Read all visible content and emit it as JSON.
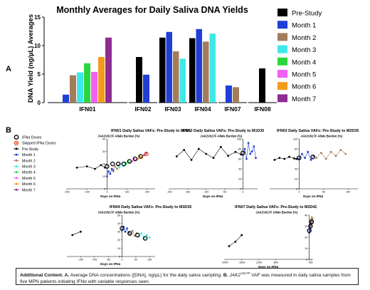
{
  "panel_a": {
    "letter": "A",
    "chart_data": {
      "type": "bar",
      "title": "Monthly Averages for Daily Saliva DNA Yields",
      "ylabel": "DNA Yield (ng/µL) Averages",
      "ylim": [
        0,
        15
      ],
      "yticks": [
        "0",
        "5",
        "10",
        "15"
      ],
      "categories": [
        "IFN01",
        "IFN02",
        "IFN03",
        "IFN04",
        "IFN07",
        "IFN08"
      ],
      "series": [
        {
          "name": "Pre-Study",
          "color": "#000000",
          "values": [
            null,
            8.0,
            11.4,
            11.3,
            null,
            6.0
          ]
        },
        {
          "name": "Month 1",
          "color": "#1f3fd6",
          "values": [
            1.4,
            4.9,
            12.4,
            12.9,
            3.0,
            null
          ]
        },
        {
          "name": "Month 2",
          "color": "#a37d5b",
          "values": [
            4.8,
            null,
            9.0,
            10.7,
            2.7,
            null
          ]
        },
        {
          "name": "Month 3",
          "color": "#3fe8e8",
          "values": [
            5.3,
            null,
            7.7,
            12.1,
            null,
            null
          ]
        },
        {
          "name": "Month 4",
          "color": "#2bd63c",
          "values": [
            6.9,
            null,
            null,
            null,
            null,
            null
          ]
        },
        {
          "name": "Month 5",
          "color": "#f25ff2",
          "values": [
            5.4,
            null,
            null,
            null,
            null,
            null
          ]
        },
        {
          "name": "Month 6",
          "color": "#f59b1b",
          "values": [
            8.0,
            null,
            null,
            null,
            null,
            null
          ]
        },
        {
          "name": "Month 7",
          "color": "#8e2c92",
          "values": [
            11.4,
            null,
            null,
            null,
            null,
            null
          ]
        }
      ]
    }
  },
  "panel_b": {
    "letter": "B",
    "legend": [
      {
        "label": "IFNα Doses",
        "kind": "circle-black",
        "color": "#000000"
      },
      {
        "label": "Skipped IFNα Doses",
        "kind": "circle-x",
        "color": "#e0512a"
      },
      {
        "label": "Pre-Study",
        "kind": "dot",
        "color": "#000000"
      },
      {
        "label": "Month 1",
        "kind": "dot",
        "color": "#1f3fd6"
      },
      {
        "label": "Month 2",
        "kind": "dot",
        "color": "#a37d5b"
      },
      {
        "label": "Month 3",
        "kind": "dot",
        "color": "#3fe8e8"
      },
      {
        "label": "Month 4",
        "kind": "dot",
        "color": "#2bd63c"
      },
      {
        "label": "Month 5",
        "kind": "dot",
        "color": "#f25ff2"
      },
      {
        "label": "Month 6",
        "kind": "dot",
        "color": "#f59b1b"
      },
      {
        "label": "Month 7",
        "kind": "dot",
        "color": "#8e2c92"
      }
    ],
    "chart_data": [
      {
        "type": "line",
        "title": "IFN01 Daily Saliva VAFs: Pre-Study to M7D1",
        "ylabel": "JAK2V617F Allele Burden (%)",
        "xlabel": "Days on IFNα",
        "xlim": [
          -200,
          240
        ],
        "ylim": [
          0,
          40
        ],
        "xticks": [
          "-200",
          "-100",
          "0",
          "100",
          "200"
        ],
        "yticks": [
          "0",
          "10",
          "20",
          "30",
          "40"
        ],
        "series": [
          {
            "name": "Pre-Study",
            "color": "#000000",
            "x": [
              -150,
              -100,
              -60,
              -30,
              -10
            ],
            "y": [
              17,
              18,
              16,
              19,
              17
            ]
          },
          {
            "name": "Month 1",
            "color": "#1f3fd6",
            "x": [
              0,
              8,
              16,
              24,
              30
            ],
            "y": [
              10,
              14,
              12,
              16,
              15
            ]
          },
          {
            "name": "Month 2",
            "color": "#a37d5b",
            "x": [
              32,
              40,
              50,
              58
            ],
            "y": [
              14,
              18,
              16,
              19
            ]
          },
          {
            "name": "Month 3",
            "color": "#3fe8e8",
            "x": [
              62,
              72,
              82,
              90
            ],
            "y": [
              17,
              20,
              18,
              21
            ]
          },
          {
            "name": "Month 4",
            "color": "#2bd63c",
            "x": [
              95,
              105,
              115
            ],
            "y": [
              20,
              22,
              21
            ]
          },
          {
            "name": "Month 5",
            "color": "#f25ff2",
            "x": [
              125,
              135,
              145
            ],
            "y": [
              22,
              24,
              23
            ]
          },
          {
            "name": "Month 6",
            "color": "#f59b1b",
            "x": [
              155,
              165,
              175
            ],
            "y": [
              24,
              26,
              25
            ]
          },
          {
            "name": "Month 7",
            "color": "#8e2c92",
            "x": [
              185,
              195
            ],
            "y": [
              27,
              29
            ]
          }
        ],
        "doses": [
          {
            "x": 0,
            "y": 18
          },
          {
            "x": 28,
            "y": 20
          },
          {
            "x": 56,
            "y": 20
          },
          {
            "x": 84,
            "y": 20
          },
          {
            "x": 112,
            "y": 22
          },
          {
            "x": 140,
            "y": 24
          },
          {
            "x": 168,
            "y": 26
          }
        ],
        "skipped": [
          {
            "x": 196,
            "y": 28
          }
        ]
      },
      {
        "type": "line",
        "title": "IFN02 Daily Saliva VAFs: Pre-Study to M1D35",
        "ylabel": "JAK2V617F Allele Burden (%)",
        "xlabel": "Days on IFNα",
        "xlim": [
          -200,
          40
        ],
        "ylim": [
          0,
          100
        ],
        "xticks": [
          "-200",
          "-150",
          "-100",
          "-50",
          "0"
        ],
        "yticks": [
          "0",
          "20",
          "40",
          "60",
          "80",
          "100"
        ],
        "series": [
          {
            "name": "Pre-Study",
            "color": "#000000",
            "x": [
              -180,
              -160,
              -140,
              -120,
              -100,
              -80,
              -60,
              -40,
              -20,
              -5
            ],
            "y": [
              65,
              78,
              58,
              80,
              70,
              62,
              84,
              66,
              74,
              69
            ]
          },
          {
            "name": "Month 1",
            "color": "#1f3fd6",
            "x": [
              0,
              5,
              10,
              15,
              20,
              25,
              30,
              35
            ],
            "y": [
              68,
              80,
              60,
              92,
              70,
              75,
              85,
              62
            ]
          }
        ],
        "doses": [
          {
            "x": 0,
            "y": 72
          }
        ],
        "skipped": []
      },
      {
        "type": "line",
        "title": "IFN03 Daily Saliva VAFs: Pre-Study to M2D35",
        "ylabel": "JAK2V617F Allele Burden (%)",
        "xlabel": "Days on IFNα",
        "xlim": [
          -60,
          120
        ],
        "ylim": [
          0,
          100
        ],
        "xticks": [
          "0",
          "50",
          "100"
        ],
        "yticks": [
          "0",
          "20",
          "40",
          "60",
          "80",
          "100"
        ],
        "series": [
          {
            "name": "Pre-Study",
            "color": "#000000",
            "x": [
              -50,
              -40,
              -30,
              -20,
              -10,
              -5
            ],
            "y": [
              58,
              62,
              60,
              64,
              61,
              60
            ]
          },
          {
            "name": "Month 1",
            "color": "#1f3fd6",
            "x": [
              0,
              6,
              12,
              18,
              24,
              30
            ],
            "y": [
              60,
              70,
              62,
              74,
              58,
              66
            ]
          },
          {
            "name": "Month 2",
            "color": "#a37d5b",
            "x": [
              35,
              45,
              55,
              65,
              75,
              85,
              95
            ],
            "y": [
              62,
              72,
              60,
              74,
              66,
              78,
              70
            ]
          }
        ],
        "doses": [
          {
            "x": 0,
            "y": 62
          },
          {
            "x": 28,
            "y": 64
          }
        ],
        "skipped": []
      },
      {
        "type": "line",
        "title": "IFN04 Daily Saliva VAFs: Pre-Study to M3D35",
        "ylabel": "JAK2V617F Allele Burden (%)",
        "xlabel": "Days on IFNα",
        "xlim": [
          -200,
          120
        ],
        "ylim": [
          0,
          50
        ],
        "xticks": [
          "-150",
          "-100",
          "-50",
          "0",
          "50",
          "100"
        ],
        "yticks": [
          "0",
          "10",
          "20",
          "30",
          "40",
          "50"
        ],
        "series": [
          {
            "name": "Pre-Study",
            "color": "#000000",
            "x": [
              -180,
              -150
            ],
            "y": [
              26,
              30
            ]
          },
          {
            "name": "Month 1",
            "color": "#1f3fd6",
            "x": [
              0,
              6,
              12,
              18,
              24
            ],
            "y": [
              32,
              36,
              30,
              34,
              29
            ]
          },
          {
            "name": "Month 2",
            "color": "#a37d5b",
            "x": [
              30,
              38,
              46,
              54
            ],
            "y": [
              27,
              31,
              25,
              28
            ]
          },
          {
            "name": "Month 3",
            "color": "#3fe8e8",
            "x": [
              60,
              70,
              80,
              90,
              100
            ],
            "y": [
              24,
              28,
              22,
              26,
              23
            ]
          }
        ],
        "doses": [
          {
            "x": 0,
            "y": 34
          },
          {
            "x": 28,
            "y": 28
          },
          {
            "x": 56,
            "y": 26
          },
          {
            "x": 84,
            "y": 22
          }
        ],
        "skipped": []
      },
      {
        "type": "line",
        "title": "IFN07 Daily Saliva VAFs: Pre-Study to M2D42",
        "ylabel": "JAK2V617F Allele Burden (%)",
        "xlabel": "Days on IFNα",
        "xlim": [
          -2000,
          90
        ],
        "ylim": [
          0,
          40
        ],
        "xticks": [
          "-2000",
          "-1600",
          "-1200",
          "-800",
          "0",
          "50"
        ],
        "yticks": [
          "0",
          "10",
          "20",
          "30",
          "40"
        ],
        "series": [
          {
            "name": "Pre-Study",
            "color": "#000000",
            "x": [
              -1900,
              -1750,
              -1600
            ],
            "y": [
              12,
              16,
              22
            ]
          },
          {
            "name": "Month 1",
            "color": "#1f3fd6",
            "x": [
              0,
              5,
              10,
              15,
              20,
              25,
              30
            ],
            "y": [
              24,
              30,
              26,
              34,
              28,
              32,
              30
            ]
          },
          {
            "name": "Month 2",
            "color": "#a37d5b",
            "x": [
              35,
              42,
              50,
              58,
              66,
              74,
              82
            ],
            "y": [
              30,
              36,
              32,
              38,
              33,
              37,
              35
            ]
          }
        ],
        "doses": [
          {
            "x": 0,
            "y": 26
          },
          {
            "x": 28,
            "y": 30
          },
          {
            "x": 56,
            "y": 34
          }
        ],
        "skipped": []
      }
    ]
  },
  "caption": {
    "lead": "Additional Content.",
    "a_label": "A.",
    "a_text": "Average DNA concentrations ([DNA], ng/µL) for the daily saliva sampling.",
    "b_label": "B.",
    "b_gene": "JAK2",
    "b_gene_sup": "V617F",
    "b_text": "VAF was measured in daily saliva samples from five MPN patients initiating IFNα with variable responses seen."
  }
}
